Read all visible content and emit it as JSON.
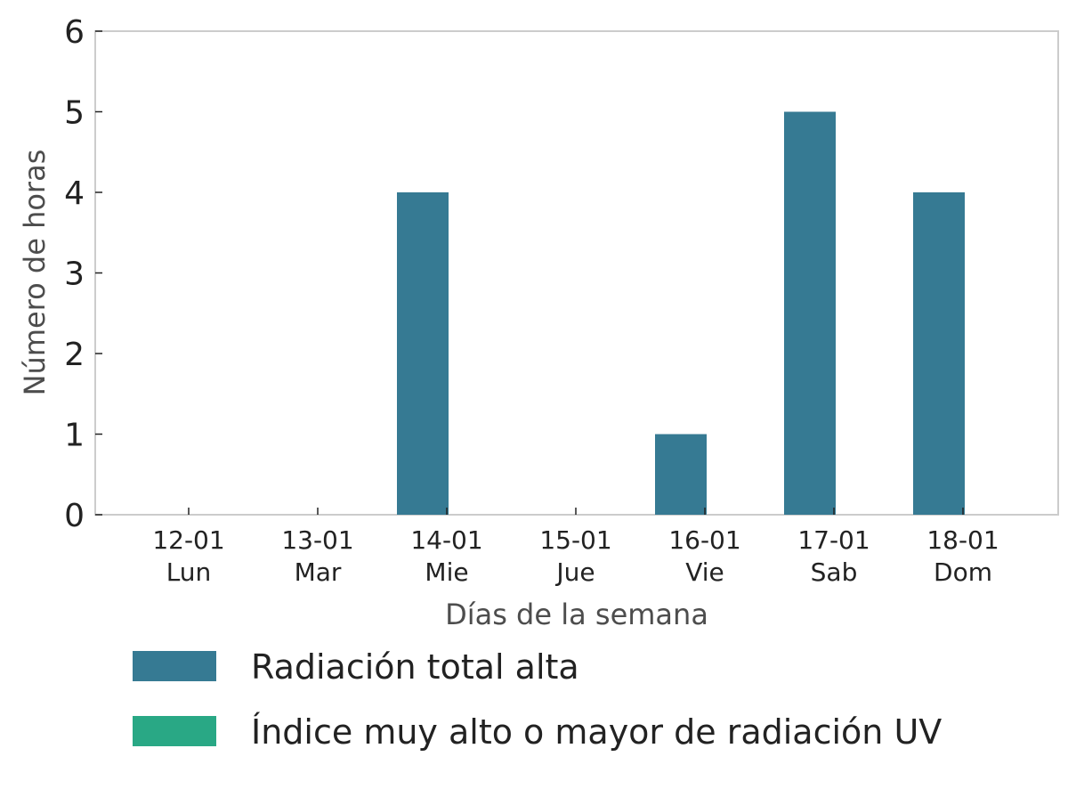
{
  "chart_data": {
    "type": "bar",
    "categories": [
      {
        "date": "12-01",
        "day": "Lun"
      },
      {
        "date": "13-01",
        "day": "Mar"
      },
      {
        "date": "14-01",
        "day": "Mie"
      },
      {
        "date": "15-01",
        "day": "Jue"
      },
      {
        "date": "16-01",
        "day": "Vie"
      },
      {
        "date": "17-01",
        "day": "Sab"
      },
      {
        "date": "18-01",
        "day": "Dom"
      }
    ],
    "series": [
      {
        "name": "Radiación total alta",
        "color": "#367a93",
        "values": [
          0,
          0,
          4,
          0,
          1,
          5,
          4
        ]
      },
      {
        "name": "Índice muy alto o mayor de radiación UV",
        "color": "#29a885",
        "values": [
          0,
          0,
          0,
          0,
          0,
          0,
          0
        ]
      }
    ],
    "xlabel": "Días de la semana",
    "ylabel": "Número de horas",
    "ylim": [
      0,
      6
    ],
    "yticks": [
      0,
      1,
      2,
      3,
      4,
      5,
      6
    ],
    "grid": false,
    "legend_position": "bottom"
  }
}
